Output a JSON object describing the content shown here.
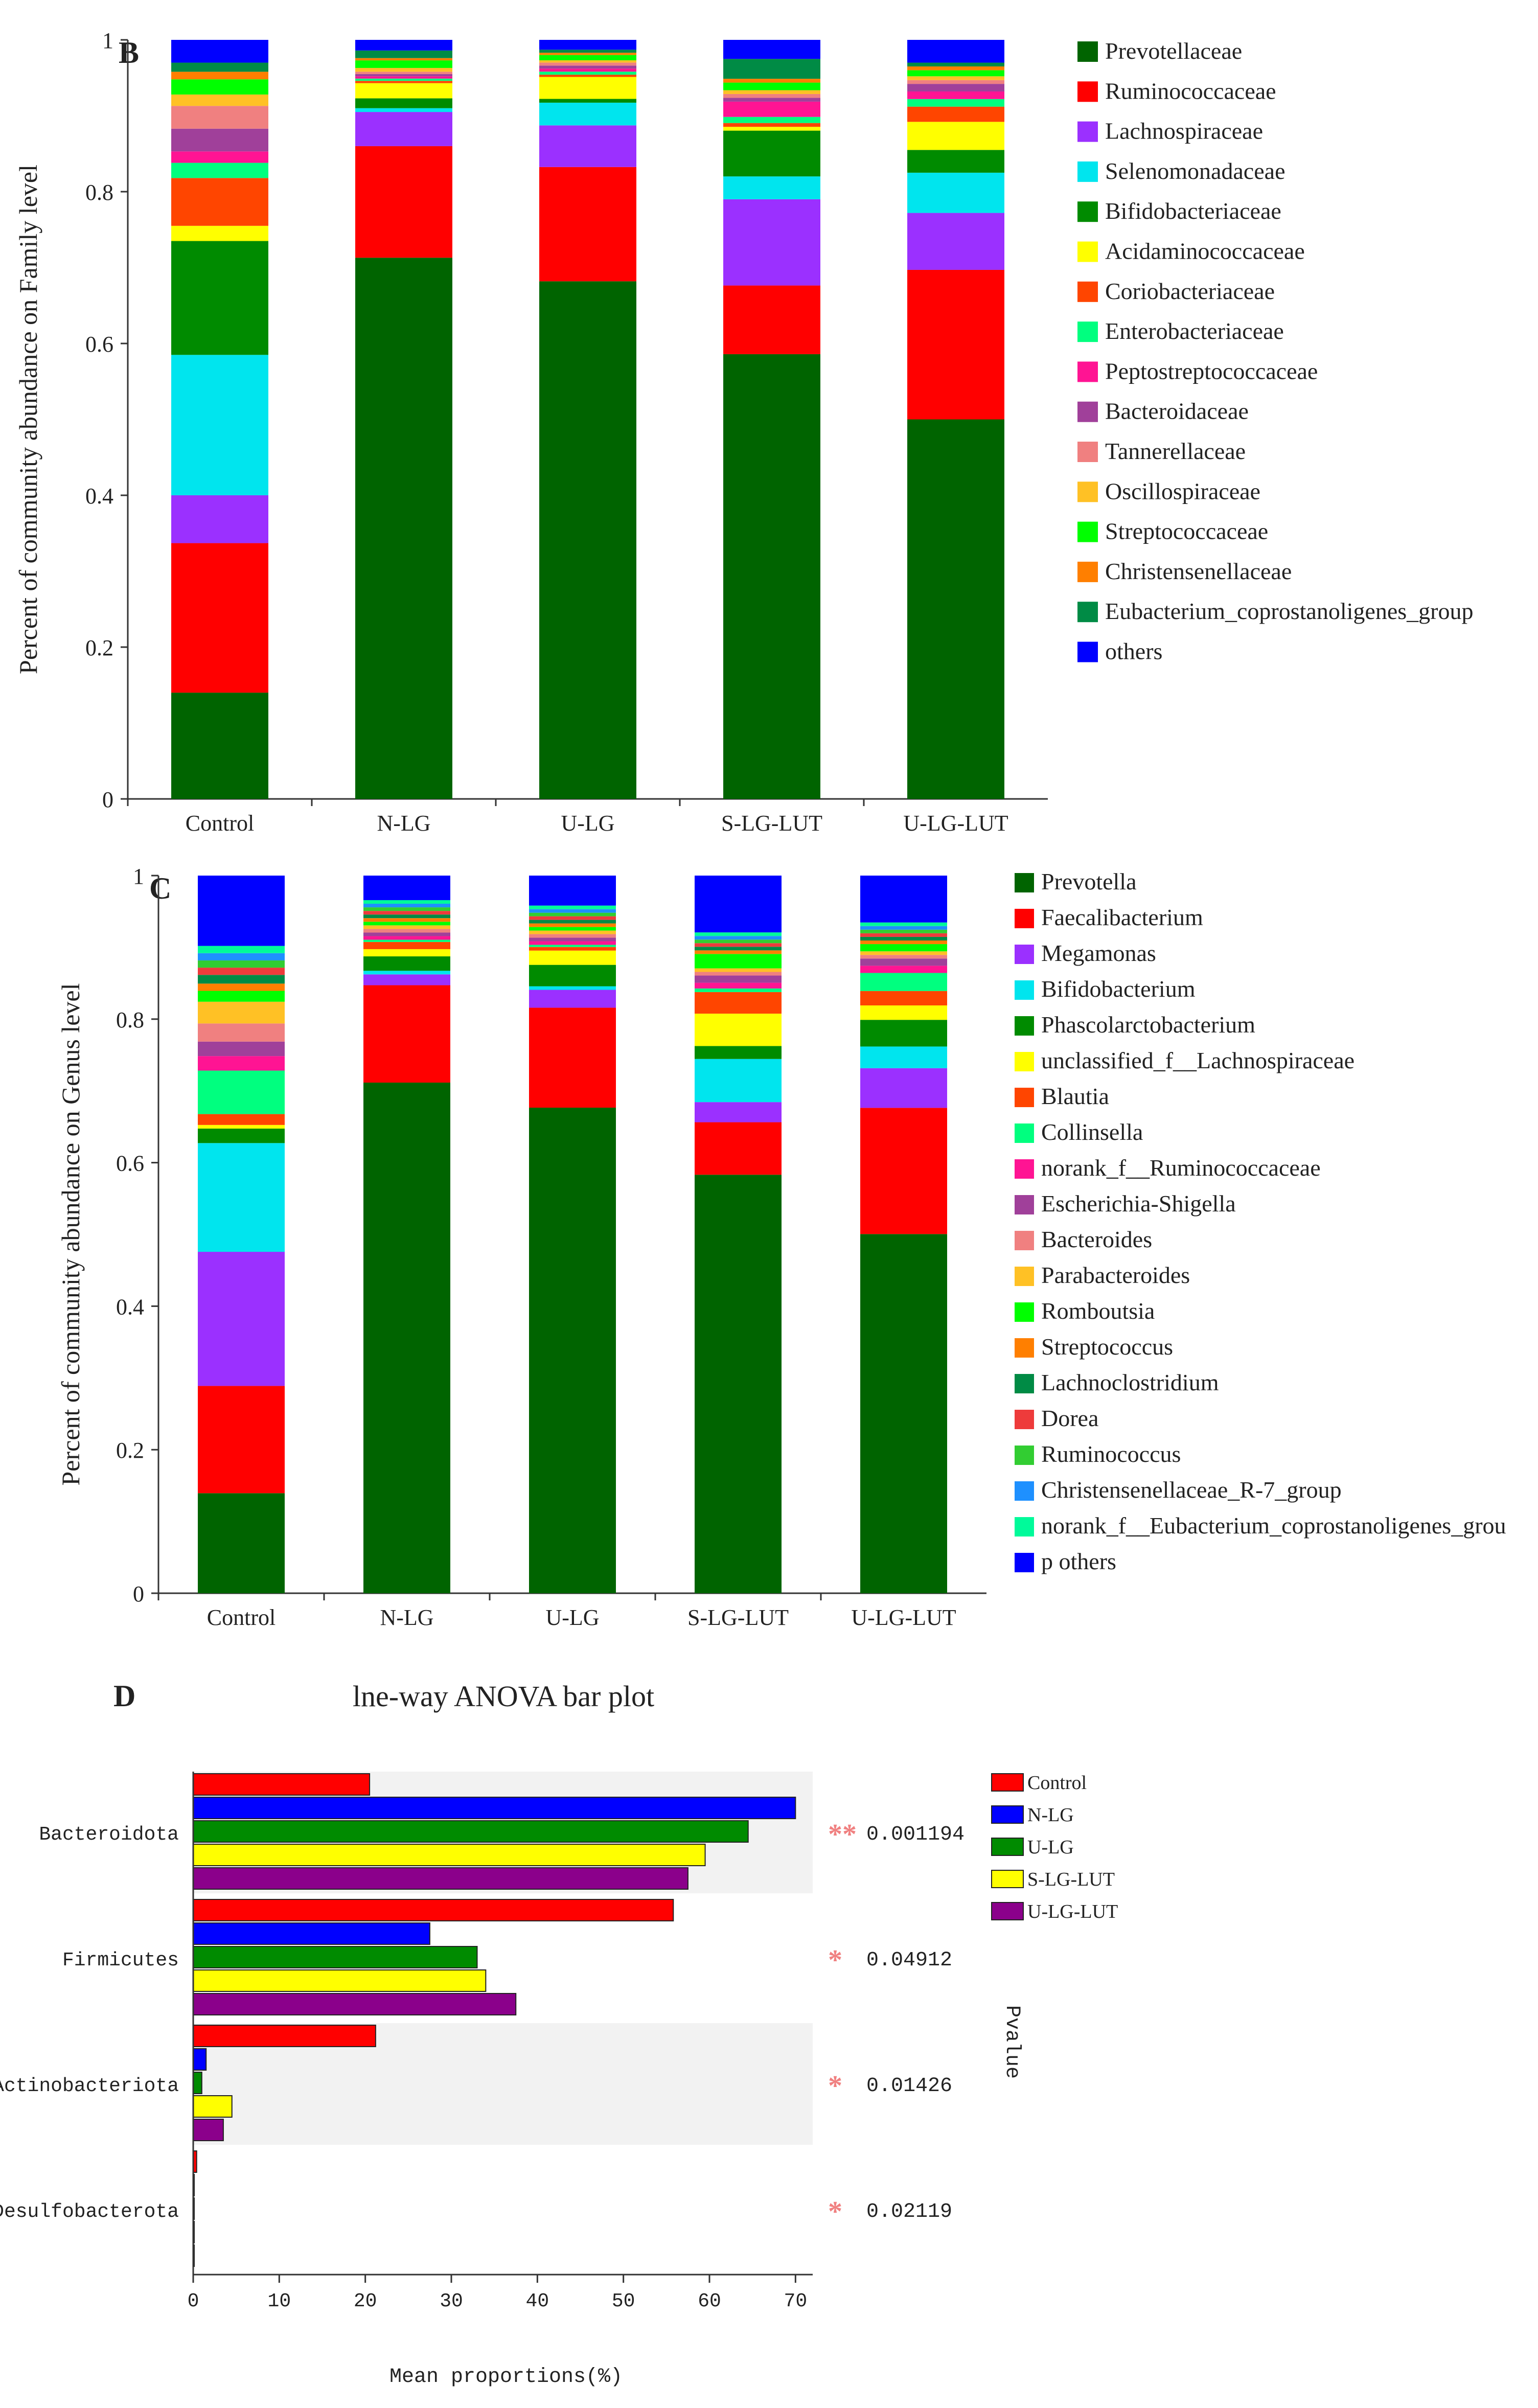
{
  "panel_labels": {
    "b": "B",
    "c": "C",
    "d": "D"
  },
  "chart_data": [
    {
      "id": "B",
      "type": "bar",
      "stacked": true,
      "title": "",
      "xlabel": "",
      "ylabel": "Percent of community abundance on Family level",
      "ylim": [
        0,
        1
      ],
      "yticks": [
        "0",
        "0.2",
        "0.4",
        "0.6",
        "0.8",
        "1"
      ],
      "categories": [
        "Control",
        "N-LG",
        "U-LG",
        "S-LG-LUT",
        "U-LG-LUT"
      ],
      "legend_position": "right",
      "series": [
        {
          "name": "Prevotellaceae",
          "color": "#006400",
          "values": [
            0.14,
            0.713,
            0.684,
            0.583,
            0.5
          ]
        },
        {
          "name": "Ruminococcaceae",
          "color": "#ff0000",
          "values": [
            0.197,
            0.147,
            0.151,
            0.09,
            0.197
          ]
        },
        {
          "name": "Lachnospiraceae",
          "color": "#9b30ff",
          "values": [
            0.063,
            0.045,
            0.055,
            0.113,
            0.075
          ]
        },
        {
          "name": "Selenomonadaceae",
          "color": "#00e5ee",
          "values": [
            0.185,
            0.005,
            0.03,
            0.03,
            0.053
          ]
        },
        {
          "name": "Bifidobacteriaceae",
          "color": "#008b00",
          "values": [
            0.15,
            0.013,
            0.005,
            0.06,
            0.03
          ]
        },
        {
          "name": "Acidaminococcaceae",
          "color": "#ffff00",
          "values": [
            0.02,
            0.02,
            0.029,
            0.005,
            0.037
          ]
        },
        {
          "name": "Coriobacteriaceae",
          "color": "#ff4500",
          "values": [
            0.063,
            0.003,
            0.003,
            0.005,
            0.02
          ]
        },
        {
          "name": "Enterobacteriaceae",
          "color": "#00ff7f",
          "values": [
            0.02,
            0.003,
            0.004,
            0.008,
            0.01
          ]
        },
        {
          "name": "Peptostreptococcaceae",
          "color": "#ff1493",
          "values": [
            0.015,
            0.003,
            0.004,
            0.02,
            0.01
          ]
        },
        {
          "name": "Bacteroidaceae",
          "color": "#a0409a",
          "values": [
            0.03,
            0.003,
            0.004,
            0.005,
            0.01
          ]
        },
        {
          "name": "Tannerellaceae",
          "color": "#f08080",
          "values": [
            0.03,
            0.003,
            0.004,
            0.005,
            0.005
          ]
        },
        {
          "name": "Oscillospiraceae",
          "color": "#ffc125",
          "values": [
            0.015,
            0.005,
            0.003,
            0.005,
            0.005
          ]
        },
        {
          "name": "Streptococcaceae",
          "color": "#00ff00",
          "values": [
            0.02,
            0.01,
            0.007,
            0.01,
            0.008
          ]
        },
        {
          "name": "Christensenellaceae",
          "color": "#ff7f00",
          "values": [
            0.01,
            0.003,
            0.003,
            0.005,
            0.005
          ]
        },
        {
          "name": "Eubacterium_coprostanoligenes_group",
          "color": "#008b45",
          "values": [
            0.012,
            0.01,
            0.004,
            0.026,
            0.005
          ]
        },
        {
          "name": "others",
          "color": "#0000ff",
          "values": [
            0.03,
            0.014,
            0.013,
            0.025,
            0.03
          ]
        }
      ]
    },
    {
      "id": "C",
      "type": "bar",
      "stacked": true,
      "title": "",
      "xlabel": "",
      "ylabel": "Percent of community abundance on Genus level",
      "ylim": [
        0,
        1
      ],
      "yticks": [
        "0",
        "0.2",
        "0.4",
        "0.6",
        "0.8",
        "1"
      ],
      "categories": [
        "Control",
        "N-LG",
        "U-LG",
        "S-LG-LUT",
        "U-LG-LUT"
      ],
      "legend_position": "right",
      "series": [
        {
          "name": "Prevotella",
          "color": "#006400",
          "values": [
            0.138,
            0.708,
            0.68,
            0.582,
            0.498
          ]
        },
        {
          "name": "Faecalibacterium",
          "color": "#ff0000",
          "values": [
            0.148,
            0.135,
            0.14,
            0.073,
            0.175
          ]
        },
        {
          "name": "Megamonas",
          "color": "#9b30ff",
          "values": [
            0.185,
            0.015,
            0.025,
            0.028,
            0.055
          ]
        },
        {
          "name": "Bifidobacterium",
          "color": "#00e5ee",
          "values": [
            0.15,
            0.005,
            0.005,
            0.06,
            0.03
          ]
        },
        {
          "name": "Phascolarctobacterium",
          "color": "#008b00",
          "values": [
            0.02,
            0.02,
            0.03,
            0.018,
            0.037
          ]
        },
        {
          "name": "unclassified_f__Lachnospiraceae",
          "color": "#ffff00",
          "values": [
            0.005,
            0.01,
            0.02,
            0.045,
            0.02
          ]
        },
        {
          "name": "Blautia",
          "color": "#ff4500",
          "values": [
            0.015,
            0.01,
            0.005,
            0.03,
            0.02
          ]
        },
        {
          "name": "Collinsella",
          "color": "#00ff7f",
          "values": [
            0.06,
            0.003,
            0.003,
            0.005,
            0.025
          ]
        },
        {
          "name": "norank_f__Ruminococcaceae",
          "color": "#ff1493",
          "values": [
            0.02,
            0.005,
            0.005,
            0.008,
            0.01
          ]
        },
        {
          "name": "Escherichia-Shigella",
          "color": "#a0409a",
          "values": [
            0.02,
            0.005,
            0.005,
            0.01,
            0.01
          ]
        },
        {
          "name": "Bacteroides",
          "color": "#f08080",
          "values": [
            0.025,
            0.005,
            0.005,
            0.005,
            0.005
          ]
        },
        {
          "name": "Parabacteroides",
          "color": "#ffc125",
          "values": [
            0.03,
            0.005,
            0.005,
            0.005,
            0.005
          ]
        },
        {
          "name": "Romboutsia",
          "color": "#00ff00",
          "values": [
            0.015,
            0.005,
            0.005,
            0.02,
            0.01
          ]
        },
        {
          "name": "Streptococcus",
          "color": "#ff7f00",
          "values": [
            0.01,
            0.005,
            0.005,
            0.005,
            0.005
          ]
        },
        {
          "name": "Lachnoclostridium",
          "color": "#008b45",
          "values": [
            0.012,
            0.005,
            0.005,
            0.005,
            0.005
          ]
        },
        {
          "name": "Dorea",
          "color": "#ee3b3b",
          "values": [
            0.01,
            0.005,
            0.005,
            0.005,
            0.005
          ]
        },
        {
          "name": "Ruminococcus",
          "color": "#32cd32",
          "values": [
            0.01,
            0.005,
            0.005,
            0.005,
            0.005
          ]
        },
        {
          "name": "Christensenellaceae_R-7_group",
          "color": "#1e90ff",
          "values": [
            0.01,
            0.005,
            0.005,
            0.005,
            0.005
          ]
        },
        {
          "name": "norank_f__Eubacterium_coprostanoligenes_grou",
          "color": "#00fa9a",
          "values": [
            0.01,
            0.005,
            0.005,
            0.005,
            0.005
          ]
        },
        {
          "name": "p others",
          "color": "#0000ff",
          "values": [
            0.097,
            0.034,
            0.042,
            0.079,
            0.065
          ]
        }
      ]
    },
    {
      "id": "D",
      "type": "bar",
      "orientation": "horizontal",
      "title": "lne-way ANOVA bar plot",
      "xlabel": "Mean proportions(%)",
      "ylabel": "",
      "right_axis_label": "Pvalue",
      "xlim": [
        0,
        72
      ],
      "xticks": [
        "0",
        "10",
        "20",
        "30",
        "40",
        "50",
        "60",
        "70"
      ],
      "categories": [
        "Bacteroidota",
        "Firmicutes",
        "Actinobacteriota",
        "Desulfobacterota"
      ],
      "legend_position": "top-right",
      "pvalues": [
        "0.001194",
        "0.04912",
        "0.01426",
        "0.02119"
      ],
      "significance": [
        "**",
        "*",
        "*",
        "*"
      ],
      "series": [
        {
          "name": "Control",
          "color": "#ff0000",
          "values": [
            20.5,
            55.8,
            21.2,
            0.4
          ]
        },
        {
          "name": "N-LG",
          "color": "#0000ff",
          "values": [
            70.0,
            27.5,
            1.5,
            0.1
          ]
        },
        {
          "name": "U-LG",
          "color": "#008b00",
          "values": [
            64.5,
            33.0,
            1.0,
            0.1
          ]
        },
        {
          "name": "S-LG-LUT",
          "color": "#ffff00",
          "values": [
            59.5,
            34.0,
            4.5,
            0.1
          ]
        },
        {
          "name": "U-LG-LUT",
          "color": "#8b008b",
          "values": [
            57.5,
            37.5,
            3.5,
            0.1
          ]
        }
      ]
    }
  ]
}
